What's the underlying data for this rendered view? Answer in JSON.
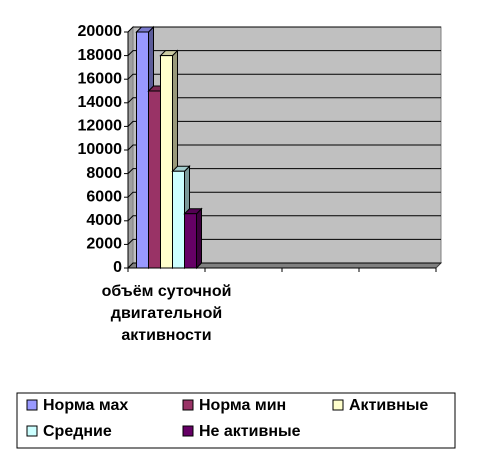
{
  "chart_data": {
    "type": "bar3d",
    "categories": [
      "объём суточной двигательной активности",
      null,
      null,
      null
    ],
    "series": [
      {
        "name": "Норма мах",
        "color": "#9999ff",
        "values": [
          20000,
          null,
          null,
          null
        ]
      },
      {
        "name": "Норма мин",
        "color": "#993366",
        "values": [
          15000,
          null,
          null,
          null
        ]
      },
      {
        "name": "Активные",
        "color": "#ffffcc",
        "values": [
          18000,
          null,
          null,
          null
        ]
      },
      {
        "name": "Средние",
        "color": "#ccffff",
        "values": [
          8200,
          null,
          null,
          null
        ]
      },
      {
        "name": "Не активные",
        "color": "#660066",
        "values": [
          4600,
          null,
          null,
          null
        ]
      }
    ],
    "ylim": [
      0,
      20000
    ],
    "yticks": [
      0,
      2000,
      4000,
      6000,
      8000,
      10000,
      12000,
      14000,
      16000,
      18000,
      20000
    ],
    "grid": true,
    "legend": "bottom"
  }
}
